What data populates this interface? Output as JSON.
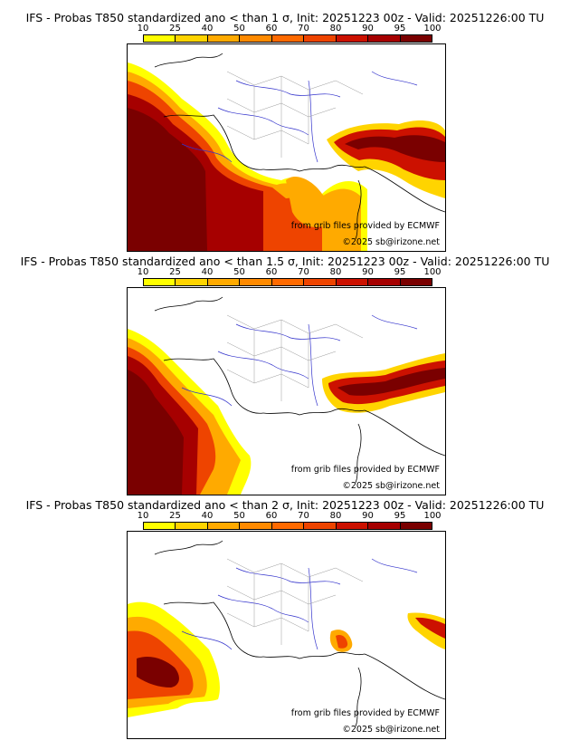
{
  "panels": [
    {
      "title": "IFS - Probas T850  standardized ano < than 1 σ, Init: 20251223 00z - Valid: 20251226:00 TU"
    },
    {
      "title": "IFS - Probas T850  standardized ano < than 1.5 σ, Init: 20251223 00z - Valid: 20251226:00 TU"
    },
    {
      "title": "IFS - Probas T850  standardized ano < than 2 σ, Init: 20251223 00z - Valid: 20251226:00 TU"
    }
  ],
  "colorbar": {
    "labels": [
      "10",
      "25",
      "40",
      "50",
      "60",
      "70",
      "80",
      "90",
      "95",
      "100"
    ],
    "colors": [
      "#ffff00",
      "#ffd400",
      "#ffaa00",
      "#ff8a00",
      "#ff6a00",
      "#ee4400",
      "#cc1100",
      "#a60000",
      "#7a0000"
    ]
  },
  "credits": {
    "grib": "from grib files provided by ECMWF",
    "copyright": "©2025 sb@irizone.net"
  }
}
